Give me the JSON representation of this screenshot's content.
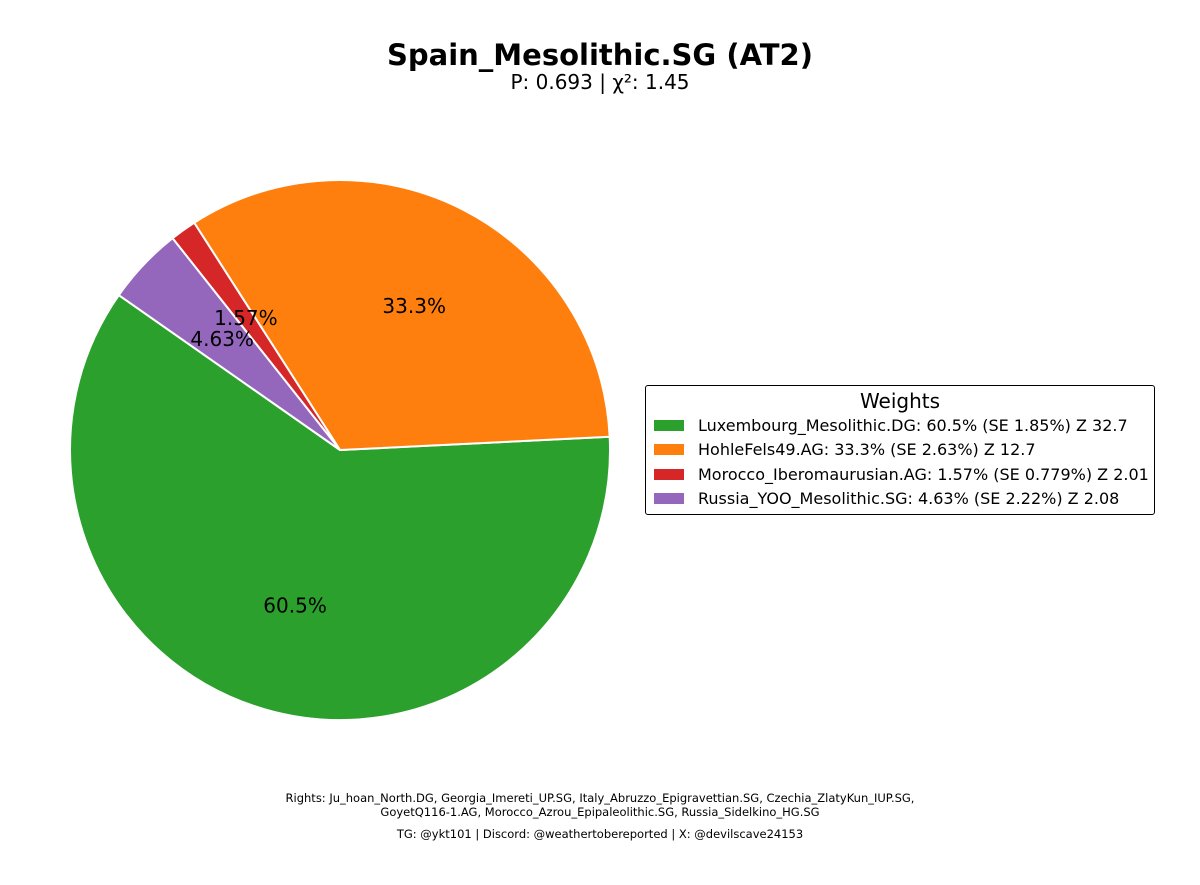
{
  "chart_data": {
    "type": "pie",
    "title": "Spain_Mesolithic.SG (AT2)",
    "subtitle": "P: 0.693 | χ²: 1.45",
    "slices": [
      {
        "name": "Luxembourg_Mesolithic.DG",
        "value": 60.5,
        "pct_label": "60.5%",
        "color": "#2ca02c",
        "legend_label": "Luxembourg_Mesolithic.DG: 60.5% (SE 1.85%) Z 32.7"
      },
      {
        "name": "HohleFels49.AG",
        "value": 33.3,
        "pct_label": "33.3%",
        "color": "#ff7f0e",
        "legend_label": "HohleFels49.AG: 33.3% (SE 2.63%) Z 12.7"
      },
      {
        "name": "Morocco_Iberomaurusian.AG",
        "value": 1.57,
        "pct_label": "1.57%",
        "color": "#d62728",
        "legend_label": "Morocco_Iberomaurusian.AG: 1.57% (SE 0.779%) Z 2.01"
      },
      {
        "name": "Russia_YOO_Mesolithic.SG",
        "value": 4.63,
        "pct_label": "4.63%",
        "color": "#9467bd",
        "legend_label": "Russia_YOO_Mesolithic.SG: 4.63% (SE 2.22%) Z 2.08"
      }
    ],
    "start_angle_deg": 145,
    "direction": "counterclockwise",
    "legend_title": "Weights",
    "legend_position": "center-right"
  },
  "footer": {
    "rights_line1": "Rights: Ju_hoan_North.DG, Georgia_Imereti_UP.SG, Italy_Abruzzo_Epigravettian.SG, Czechia_ZlatyKun_IUP.SG,",
    "rights_line2": "GoyetQ116-1.AG, Morocco_Azrou_Epipaleolithic.SG, Russia_Sidelkino_HG.SG",
    "contact": "TG: @ykt101 | Discord: @weathertobereported | X: @devilscave24153"
  }
}
